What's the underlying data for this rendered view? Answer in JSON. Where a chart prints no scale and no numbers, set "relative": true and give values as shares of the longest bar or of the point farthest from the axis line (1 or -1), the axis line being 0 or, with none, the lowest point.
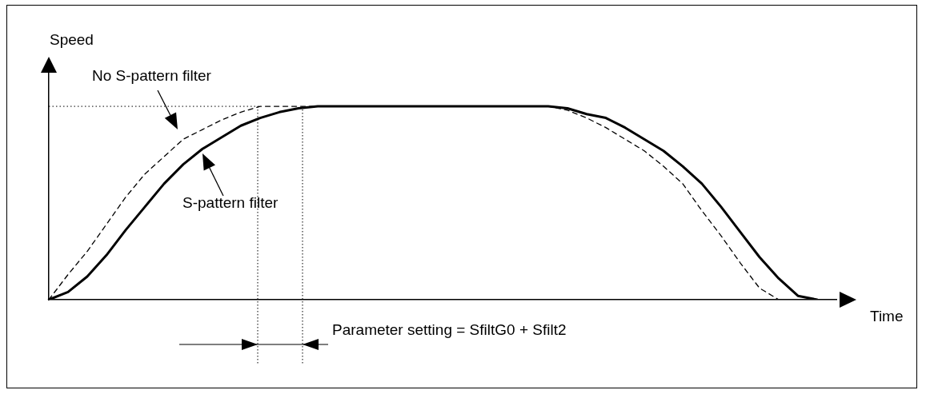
{
  "chart_data": {
    "type": "line",
    "relative": true,
    "xlabel": "Time",
    "ylabel": "Speed",
    "grid": false,
    "marker": "none",
    "categories": [
      null,
      null,
      null,
      null,
      null,
      null,
      null,
      null,
      null,
      null,
      null,
      null,
      null,
      null,
      null,
      null,
      null,
      null,
      null,
      null,
      null,
      null,
      null,
      null,
      null,
      null,
      null,
      null,
      null,
      null,
      null,
      null,
      null,
      null,
      null,
      null,
      null,
      null,
      null,
      null,
      null,
      null
    ],
    "series": [
      {
        "name": "No S-pattern filter",
        "color": "#000000",
        "line_style": "dashed",
        "values": [
          0,
          0.13,
          0.25,
          0.39,
          0.53,
          0.65,
          0.74,
          0.83,
          0.88,
          0.93,
          0.97,
          1,
          1,
          1,
          1,
          1,
          1,
          1,
          1,
          1,
          1,
          1,
          1,
          1,
          1,
          1,
          1,
          0.98,
          0.94,
          0.89,
          0.83,
          0.77,
          0.69,
          0.6,
          0.46,
          0.33,
          0.19,
          0.06,
          0,
          null,
          null,
          null
        ]
      },
      {
        "name": "S-pattern filter",
        "color": "#000000",
        "line_style": "solid",
        "values": [
          0,
          0.04,
          0.12,
          0.23,
          0.36,
          0.48,
          0.6,
          0.7,
          0.78,
          0.84,
          0.9,
          0.94,
          0.97,
          0.99,
          1,
          1,
          1,
          1,
          1,
          1,
          1,
          1,
          1,
          1,
          1,
          1,
          1,
          0.99,
          0.96,
          0.94,
          0.89,
          0.83,
          0.77,
          0.69,
          0.6,
          0.48,
          0.35,
          0.22,
          0.11,
          0.02,
          0,
          null
        ]
      }
    ],
    "ref_lines": [
      {
        "axis": "y",
        "value": 1,
        "line_style": "dotted"
      }
    ],
    "annotations": [
      "Parameter setting = SfiltG0 + Sfilt2"
    ]
  }
}
